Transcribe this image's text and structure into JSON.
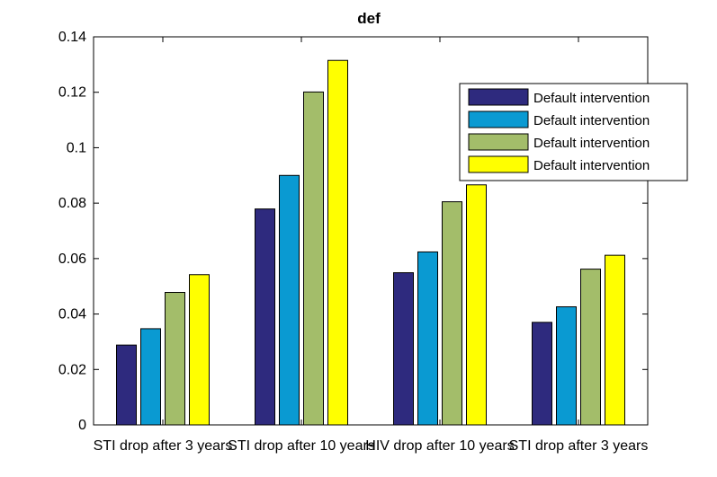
{
  "chart_data": {
    "type": "bar",
    "title": "def",
    "xlabel": "",
    "ylabel": "",
    "categories": [
      "STI drop after 3 years",
      "STI drop after 10 years",
      "HIV drop after 10 years",
      "STI drop after 3 years"
    ],
    "series": [
      {
        "name": "Default intervention",
        "color": "#2e2a7e",
        "values": [
          0.0288,
          0.0779,
          0.0549,
          0.037
        ]
      },
      {
        "name": "Default intervention",
        "color": "#0a9ad2",
        "values": [
          0.0347,
          0.09,
          0.0624,
          0.0426
        ]
      },
      {
        "name": "Default intervention",
        "color": "#a3bd6a",
        "values": [
          0.0478,
          0.1201,
          0.0805,
          0.0562
        ]
      },
      {
        "name": "Default intervention",
        "color": "#ffff00",
        "values": [
          0.0542,
          0.1315,
          0.0866,
          0.0612
        ]
      }
    ],
    "ylim": [
      0,
      0.14
    ],
    "yticks": [
      "0",
      "0.02",
      "0.04",
      "0.06",
      "0.08",
      "0.1",
      "0.12",
      "0.14"
    ],
    "ytick_values": [
      0,
      0.02,
      0.04,
      0.06,
      0.08,
      0.1,
      0.12,
      0.14
    ],
    "legend_position": "top-right",
    "grid": false
  }
}
